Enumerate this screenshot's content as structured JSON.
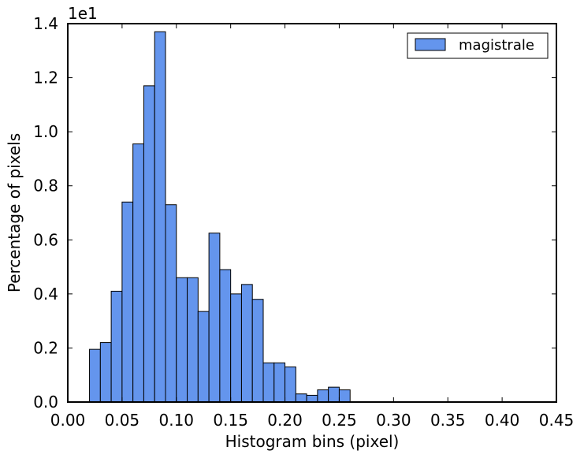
{
  "chart_data": {
    "type": "bar",
    "xlabel": "Histogram bins (pixel)",
    "ylabel": "Percentage of pixels",
    "y_offset_text": "1e1",
    "xlim": [
      0.0,
      0.45
    ],
    "ylim": [
      0.0,
      1.4
    ],
    "x_ticks": [
      "0.00",
      "0.05",
      "0.10",
      "0.15",
      "0.20",
      "0.25",
      "0.30",
      "0.35",
      "0.40",
      "0.45"
    ],
    "x_tick_values": [
      0.0,
      0.05,
      0.1,
      0.15,
      0.2,
      0.25,
      0.3,
      0.35,
      0.4,
      0.45
    ],
    "y_ticks": [
      "0.0",
      "0.2",
      "0.4",
      "0.6",
      "0.8",
      "1.0",
      "1.2",
      "1.4"
    ],
    "y_tick_values": [
      0.0,
      0.2,
      0.4,
      0.6,
      0.8,
      1.0,
      1.2,
      1.4
    ],
    "bin_width": 0.01,
    "legend_position": "top-right",
    "grid": false,
    "series": [
      {
        "name": "magistrale",
        "color": "#6495ED",
        "bin_starts": [
          0.02,
          0.03,
          0.04,
          0.05,
          0.06,
          0.07,
          0.08,
          0.09,
          0.1,
          0.11,
          0.12,
          0.13,
          0.14,
          0.15,
          0.16,
          0.17,
          0.18,
          0.19,
          0.2,
          0.21,
          0.22,
          0.23,
          0.24,
          0.25
        ],
        "values": [
          0.195,
          0.22,
          0.41,
          0.74,
          0.955,
          1.17,
          1.37,
          0.73,
          0.46,
          0.46,
          0.335,
          0.625,
          0.49,
          0.4,
          0.435,
          0.38,
          0.145,
          0.145,
          0.13,
          0.03,
          0.025,
          0.045,
          0.055,
          0.045
        ]
      }
    ]
  }
}
